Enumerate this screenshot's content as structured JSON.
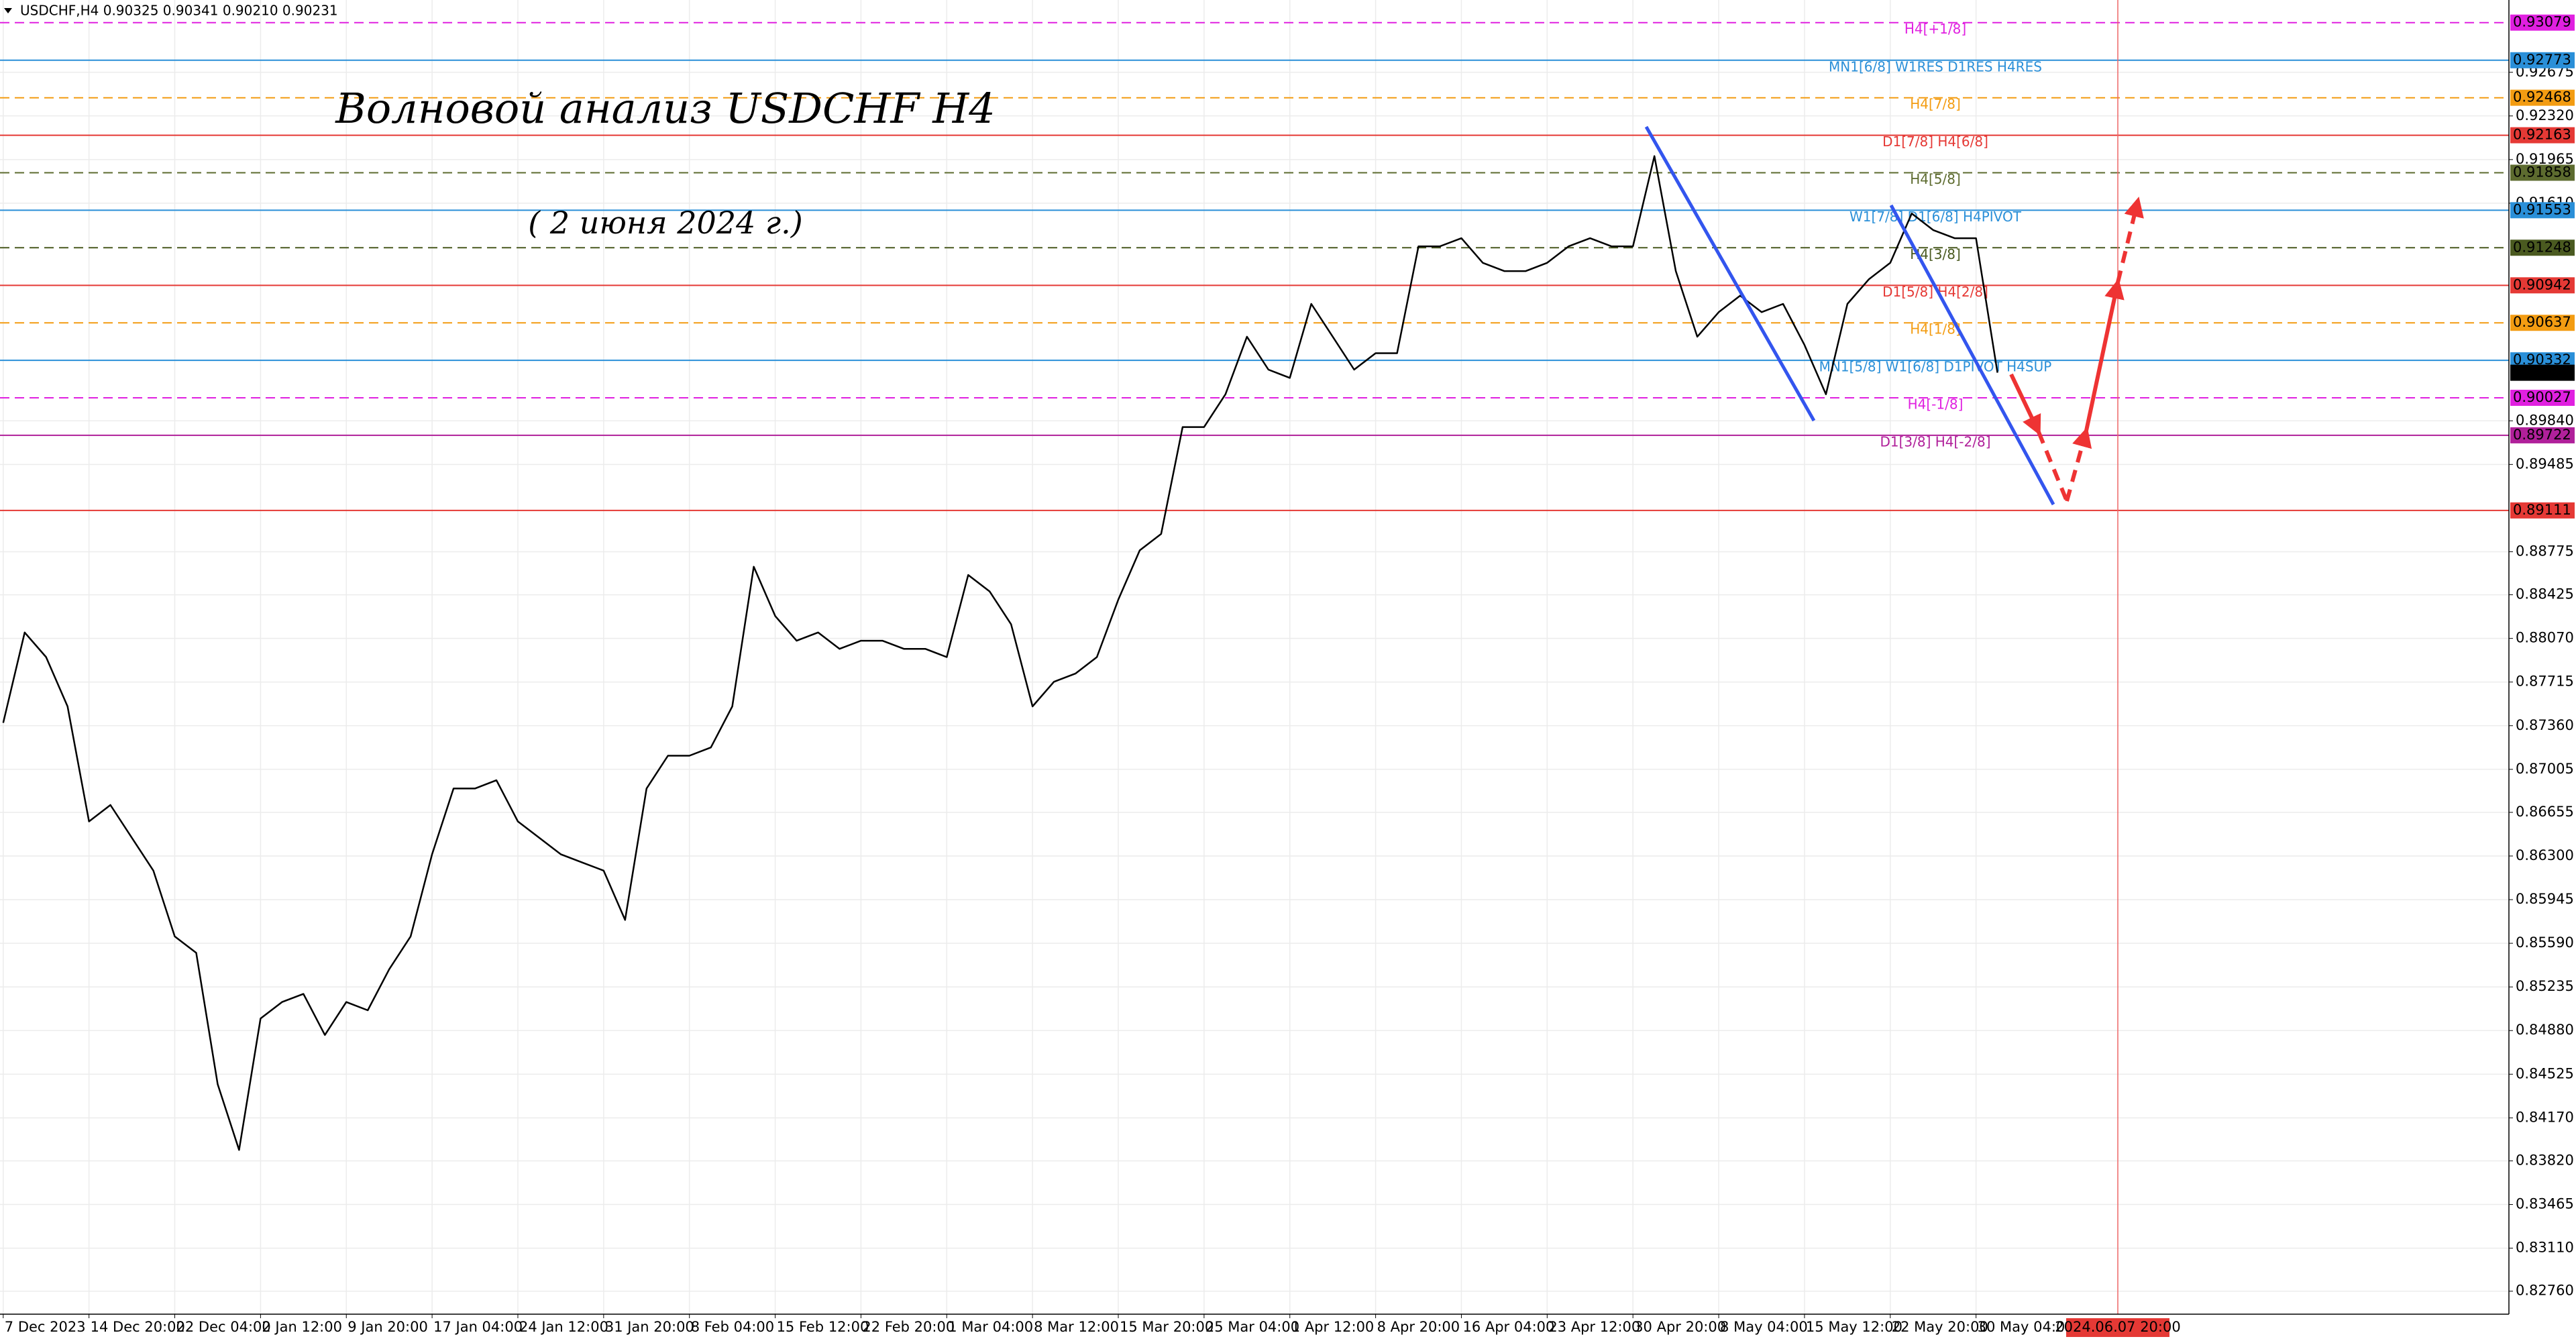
{
  "chart_data": {
    "type": "line",
    "header": "USDCHF,H4  0.90325 0.90341 0.90210 0.90231",
    "title": "Волновой анализ USDCHF H4",
    "subtitle": "( 2 июня 2024 г.)",
    "color": "#000000",
    "grid": true,
    "ylim": [
      0.82573,
      0.93263
    ],
    "yticks": [
      0.92675,
      {
        "value": 0.9232,
        "label": "0.92320"
      },
      0.91965,
      {
        "value": 0.9161,
        "label": "0.91610"
      },
      {
        "value": 0.8984,
        "label": "0.89840"
      },
      0.89485,
      0.88775,
      0.88425,
      {
        "value": 0.8807,
        "label": "0.88070"
      },
      0.87715,
      {
        "value": 0.8736,
        "label": "0.87360"
      },
      0.87005,
      0.86655,
      {
        "value": 0.863,
        "label": "0.86300"
      },
      0.85945,
      {
        "value": 0.8559,
        "label": "0.85590"
      },
      0.85235,
      {
        "value": 0.8488,
        "label": "0.84880"
      },
      0.84525,
      {
        "value": 0.8417,
        "label": "0.84170"
      },
      {
        "value": 0.8382,
        "label": "0.83820"
      },
      0.83465,
      {
        "value": 0.8311,
        "label": "0.83110"
      },
      {
        "value": 0.8276,
        "label": "0.82760"
      }
    ],
    "categories": [
      "7 Dec 2023",
      null,
      null,
      null,
      "14 Dec 20:00",
      null,
      null,
      null,
      "22 Dec 04:00",
      null,
      null,
      null,
      "2 Jan 12:00",
      null,
      null,
      null,
      "9 Jan 20:00",
      null,
      null,
      null,
      "17 Jan 04:00",
      null,
      null,
      null,
      "24 Jan 12:00",
      null,
      null,
      null,
      "31 Jan 20:00",
      null,
      null,
      null,
      "8 Feb 04:00",
      null,
      null,
      null,
      "15 Feb 12:00",
      null,
      null,
      null,
      "22 Feb 20:00",
      null,
      null,
      null,
      "1 Mar 04:00",
      null,
      null,
      null,
      "8 Mar 12:00",
      null,
      null,
      null,
      "15 Mar 20:00",
      null,
      null,
      null,
      "25 Mar 04:00",
      null,
      null,
      null,
      "1 Apr 12:00",
      null,
      null,
      null,
      "8 Apr 20:00",
      null,
      null,
      null,
      "16 Apr 04:00",
      null,
      null,
      null,
      "23 Apr 12:00",
      null,
      null,
      null,
      "30 Apr 20:00",
      null,
      null,
      null,
      "8 May 04:00",
      null,
      null,
      null,
      "15 May 12:00",
      null,
      null,
      null,
      "22 May 20:00",
      null,
      null,
      null,
      "30 May 04:00",
      null,
      null,
      null,
      null,
      null,
      null,
      null,
      null,
      null,
      null,
      null,
      null,
      null,
      null,
      null,
      null,
      null,
      null,
      null,
      null,
      null,
      null,
      null,
      null
    ],
    "values": [
      0.87383,
      0.88118,
      0.87918,
      0.87517,
      0.86581,
      0.86715,
      0.86448,
      0.86181,
      0.85646,
      0.85512,
      0.84443,
      0.83909,
      0.84978,
      0.85112,
      0.85178,
      0.84844,
      0.85112,
      0.85045,
      0.85379,
      0.85646,
      0.86314,
      0.86849,
      0.86849,
      0.86916,
      0.86581,
      0.86448,
      0.86314,
      0.86247,
      0.86181,
      0.8578,
      0.86849,
      0.87116,
      0.87116,
      0.87183,
      0.87517,
      0.88653,
      0.88252,
      0.88051,
      0.88118,
      0.87985,
      0.88051,
      0.88051,
      0.87985,
      0.87985,
      0.87918,
      0.88586,
      0.88452,
      0.88185,
      0.87517,
      0.87717,
      0.87784,
      0.87918,
      0.88385,
      0.88786,
      0.8892,
      0.89789,
      0.89789,
      0.90056,
      0.90524,
      0.90256,
      0.90189,
      0.90791,
      0.90524,
      0.90256,
      0.9039,
      0.9039,
      0.91259,
      0.91259,
      0.91325,
      0.91125,
      0.91058,
      0.91058,
      0.91125,
      0.91259,
      0.91325,
      0.91259,
      0.91259,
      0.91993,
      0.91058,
      0.90524,
      0.90724,
      0.90858,
      0.90724,
      0.90791,
      0.90457,
      0.90056,
      0.90791,
      0.90991,
      0.91125,
      0.91526,
      0.91392,
      0.91325,
      0.91325,
      0.90231,
      null,
      null,
      null,
      null,
      null,
      null,
      null,
      null,
      null,
      null,
      null,
      null,
      null,
      null,
      null,
      null,
      null,
      null,
      null,
      null,
      null,
      null,
      null
    ],
    "current_price": 0.90231,
    "current_price_color": "#000000",
    "cursor_label": "2024.06.07 20:00",
    "levels": [
      {
        "label": "H4[+1/8]",
        "value": 0.93079,
        "color": "#e020e0",
        "dashed": true
      },
      {
        "label": "MN1[6/8] W1RES D1RES H4RES",
        "value": 0.92773,
        "color": "#2a8fd8",
        "dashed": false
      },
      {
        "label": "H4[7/8]",
        "value": 0.92468,
        "color": "#f39c12",
        "dashed": true
      },
      {
        "label": "D1[7/8] H4[6/8]",
        "value": 0.92163,
        "color": "#e53935",
        "dashed": false
      },
      {
        "label": "H4[5/8]",
        "value": 0.91858,
        "color": "#5d6b2f",
        "dashed": true
      },
      {
        "label": "W1[7/8] D1[6/8] H4PIVOT",
        "value": 0.91553,
        "color": "#2a8fd8",
        "dashed": false
      },
      {
        "label": "H4[3/8]",
        "value": 0.91248,
        "color": "#4a5a20",
        "dashed": true
      },
      {
        "label": "D1[5/8] H4[2/8]",
        "value": 0.90942,
        "color": "#e53935",
        "dashed": false
      },
      {
        "label": "H4[1/8]",
        "value": 0.90637,
        "color": "#f39c12",
        "dashed": true
      },
      {
        "label": "MN1[5/8] W1[6/8] D1PIVOT H4SUP",
        "value": 0.90332,
        "color": "#2a8fd8",
        "dashed": false
      },
      {
        "label": "H4[-1/8]",
        "value": 0.90027,
        "color": "#e020e0",
        "dashed": true
      },
      {
        "label": "D1[3/8] H4[-2/8]",
        "value": 0.89722,
        "color": "#b0209a",
        "dashed": false
      },
      {
        "value": 0.89111,
        "color": "#e53935",
        "dashed": false
      }
    ]
  }
}
